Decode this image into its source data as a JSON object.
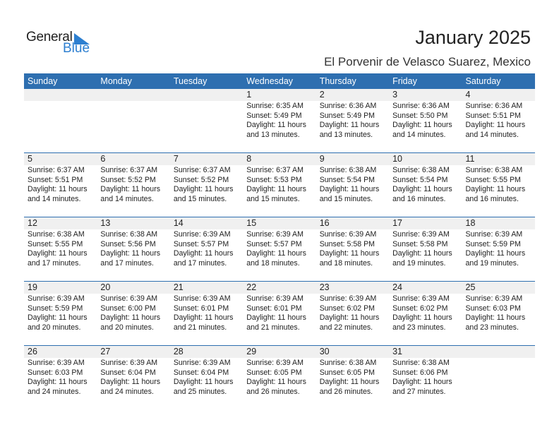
{
  "logo": {
    "text_general": "General",
    "text_blue": "Blue",
    "color": "#2d7fd0"
  },
  "header": {
    "title": "January 2025",
    "subtitle": "El Porvenir de Velasco Suarez, Mexico"
  },
  "colors": {
    "header_bg": "#2e6fb0",
    "date_band": "#f0f0f0"
  },
  "weekdays": [
    "Sunday",
    "Monday",
    "Tuesday",
    "Wednesday",
    "Thursday",
    "Friday",
    "Saturday"
  ],
  "weeks": [
    [
      null,
      null,
      null,
      {
        "day": "1",
        "sunrise": "Sunrise: 6:35 AM",
        "sunset": "Sunset: 5:49 PM",
        "daylight1": "Daylight: 11 hours",
        "daylight2": "and 13 minutes."
      },
      {
        "day": "2",
        "sunrise": "Sunrise: 6:36 AM",
        "sunset": "Sunset: 5:49 PM",
        "daylight1": "Daylight: 11 hours",
        "daylight2": "and 13 minutes."
      },
      {
        "day": "3",
        "sunrise": "Sunrise: 6:36 AM",
        "sunset": "Sunset: 5:50 PM",
        "daylight1": "Daylight: 11 hours",
        "daylight2": "and 14 minutes."
      },
      {
        "day": "4",
        "sunrise": "Sunrise: 6:36 AM",
        "sunset": "Sunset: 5:51 PM",
        "daylight1": "Daylight: 11 hours",
        "daylight2": "and 14 minutes."
      }
    ],
    [
      {
        "day": "5",
        "sunrise": "Sunrise: 6:37 AM",
        "sunset": "Sunset: 5:51 PM",
        "daylight1": "Daylight: 11 hours",
        "daylight2": "and 14 minutes."
      },
      {
        "day": "6",
        "sunrise": "Sunrise: 6:37 AM",
        "sunset": "Sunset: 5:52 PM",
        "daylight1": "Daylight: 11 hours",
        "daylight2": "and 14 minutes."
      },
      {
        "day": "7",
        "sunrise": "Sunrise: 6:37 AM",
        "sunset": "Sunset: 5:52 PM",
        "daylight1": "Daylight: 11 hours",
        "daylight2": "and 15 minutes."
      },
      {
        "day": "8",
        "sunrise": "Sunrise: 6:37 AM",
        "sunset": "Sunset: 5:53 PM",
        "daylight1": "Daylight: 11 hours",
        "daylight2": "and 15 minutes."
      },
      {
        "day": "9",
        "sunrise": "Sunrise: 6:38 AM",
        "sunset": "Sunset: 5:54 PM",
        "daylight1": "Daylight: 11 hours",
        "daylight2": "and 15 minutes."
      },
      {
        "day": "10",
        "sunrise": "Sunrise: 6:38 AM",
        "sunset": "Sunset: 5:54 PM",
        "daylight1": "Daylight: 11 hours",
        "daylight2": "and 16 minutes."
      },
      {
        "day": "11",
        "sunrise": "Sunrise: 6:38 AM",
        "sunset": "Sunset: 5:55 PM",
        "daylight1": "Daylight: 11 hours",
        "daylight2": "and 16 minutes."
      }
    ],
    [
      {
        "day": "12",
        "sunrise": "Sunrise: 6:38 AM",
        "sunset": "Sunset: 5:55 PM",
        "daylight1": "Daylight: 11 hours",
        "daylight2": "and 17 minutes."
      },
      {
        "day": "13",
        "sunrise": "Sunrise: 6:38 AM",
        "sunset": "Sunset: 5:56 PM",
        "daylight1": "Daylight: 11 hours",
        "daylight2": "and 17 minutes."
      },
      {
        "day": "14",
        "sunrise": "Sunrise: 6:39 AM",
        "sunset": "Sunset: 5:57 PM",
        "daylight1": "Daylight: 11 hours",
        "daylight2": "and 17 minutes."
      },
      {
        "day": "15",
        "sunrise": "Sunrise: 6:39 AM",
        "sunset": "Sunset: 5:57 PM",
        "daylight1": "Daylight: 11 hours",
        "daylight2": "and 18 minutes."
      },
      {
        "day": "16",
        "sunrise": "Sunrise: 6:39 AM",
        "sunset": "Sunset: 5:58 PM",
        "daylight1": "Daylight: 11 hours",
        "daylight2": "and 18 minutes."
      },
      {
        "day": "17",
        "sunrise": "Sunrise: 6:39 AM",
        "sunset": "Sunset: 5:58 PM",
        "daylight1": "Daylight: 11 hours",
        "daylight2": "and 19 minutes."
      },
      {
        "day": "18",
        "sunrise": "Sunrise: 6:39 AM",
        "sunset": "Sunset: 5:59 PM",
        "daylight1": "Daylight: 11 hours",
        "daylight2": "and 19 minutes."
      }
    ],
    [
      {
        "day": "19",
        "sunrise": "Sunrise: 6:39 AM",
        "sunset": "Sunset: 5:59 PM",
        "daylight1": "Daylight: 11 hours",
        "daylight2": "and 20 minutes."
      },
      {
        "day": "20",
        "sunrise": "Sunrise: 6:39 AM",
        "sunset": "Sunset: 6:00 PM",
        "daylight1": "Daylight: 11 hours",
        "daylight2": "and 20 minutes."
      },
      {
        "day": "21",
        "sunrise": "Sunrise: 6:39 AM",
        "sunset": "Sunset: 6:01 PM",
        "daylight1": "Daylight: 11 hours",
        "daylight2": "and 21 minutes."
      },
      {
        "day": "22",
        "sunrise": "Sunrise: 6:39 AM",
        "sunset": "Sunset: 6:01 PM",
        "daylight1": "Daylight: 11 hours",
        "daylight2": "and 21 minutes."
      },
      {
        "day": "23",
        "sunrise": "Sunrise: 6:39 AM",
        "sunset": "Sunset: 6:02 PM",
        "daylight1": "Daylight: 11 hours",
        "daylight2": "and 22 minutes."
      },
      {
        "day": "24",
        "sunrise": "Sunrise: 6:39 AM",
        "sunset": "Sunset: 6:02 PM",
        "daylight1": "Daylight: 11 hours",
        "daylight2": "and 23 minutes."
      },
      {
        "day": "25",
        "sunrise": "Sunrise: 6:39 AM",
        "sunset": "Sunset: 6:03 PM",
        "daylight1": "Daylight: 11 hours",
        "daylight2": "and 23 minutes."
      }
    ],
    [
      {
        "day": "26",
        "sunrise": "Sunrise: 6:39 AM",
        "sunset": "Sunset: 6:03 PM",
        "daylight1": "Daylight: 11 hours",
        "daylight2": "and 24 minutes."
      },
      {
        "day": "27",
        "sunrise": "Sunrise: 6:39 AM",
        "sunset": "Sunset: 6:04 PM",
        "daylight1": "Daylight: 11 hours",
        "daylight2": "and 24 minutes."
      },
      {
        "day": "28",
        "sunrise": "Sunrise: 6:39 AM",
        "sunset": "Sunset: 6:04 PM",
        "daylight1": "Daylight: 11 hours",
        "daylight2": "and 25 minutes."
      },
      {
        "day": "29",
        "sunrise": "Sunrise: 6:39 AM",
        "sunset": "Sunset: 6:05 PM",
        "daylight1": "Daylight: 11 hours",
        "daylight2": "and 26 minutes."
      },
      {
        "day": "30",
        "sunrise": "Sunrise: 6:38 AM",
        "sunset": "Sunset: 6:05 PM",
        "daylight1": "Daylight: 11 hours",
        "daylight2": "and 26 minutes."
      },
      {
        "day": "31",
        "sunrise": "Sunrise: 6:38 AM",
        "sunset": "Sunset: 6:06 PM",
        "daylight1": "Daylight: 11 hours",
        "daylight2": "and 27 minutes."
      },
      null
    ]
  ]
}
